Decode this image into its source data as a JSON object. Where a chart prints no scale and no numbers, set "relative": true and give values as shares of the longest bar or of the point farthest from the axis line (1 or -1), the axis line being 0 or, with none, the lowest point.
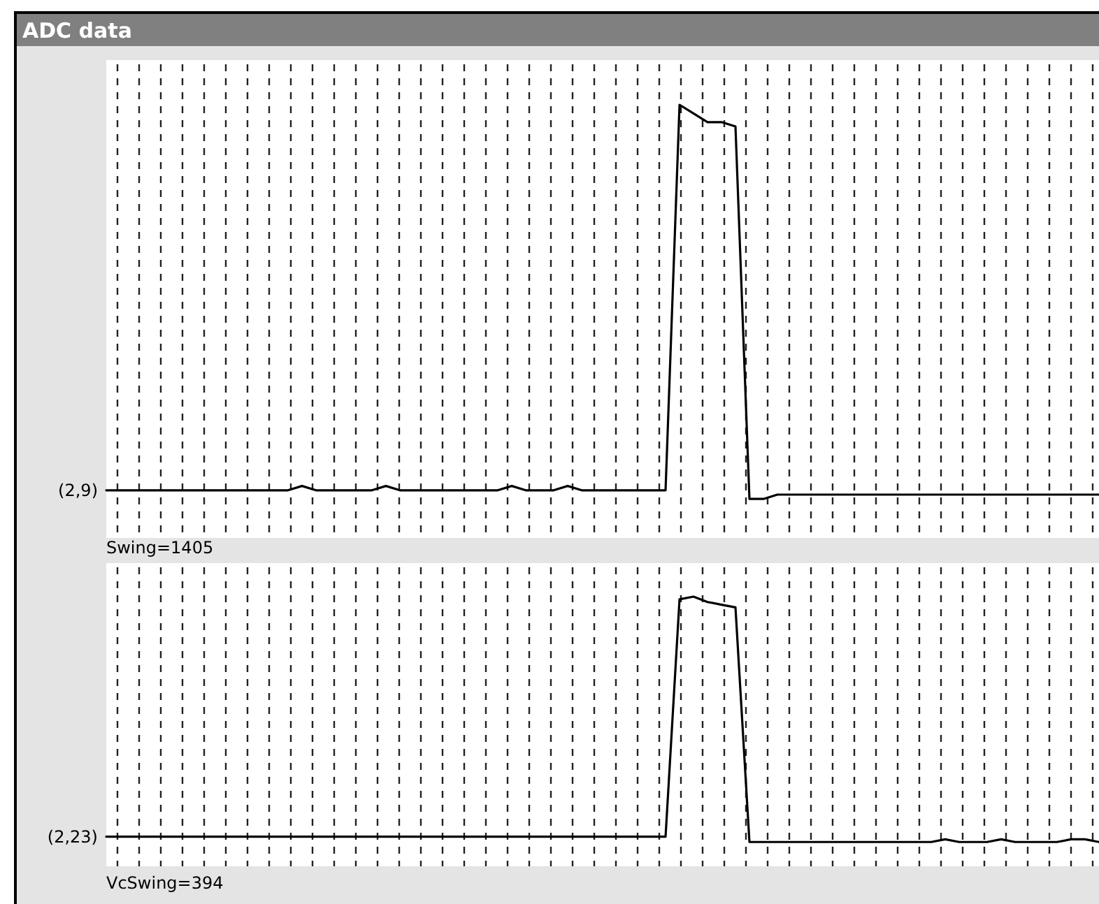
{
  "chart_data": [
    {
      "type": "line",
      "title": "ADC data",
      "relative": true,
      "tick_labels": false,
      "grid": "x",
      "marker": "none",
      "line_style": "solid",
      "annotations": [
        "(2,9)",
        "Swing=1405"
      ],
      "categories": [
        null,
        null,
        null,
        null,
        null,
        null,
        null,
        null,
        null,
        null,
        null,
        null,
        null,
        null,
        null,
        null,
        null,
        null,
        null,
        null,
        null,
        null,
        null,
        null,
        null,
        null,
        null,
        null,
        null,
        null,
        null,
        null,
        null,
        null,
        null,
        null,
        null,
        null,
        null,
        null,
        null,
        null,
        null,
        null,
        null,
        null,
        null,
        null,
        null,
        null,
        null,
        null,
        null,
        null,
        null,
        null,
        null,
        null,
        null,
        null,
        null,
        null,
        null,
        null,
        null,
        null,
        null,
        null,
        null,
        null,
        null,
        null
      ],
      "series": [
        {
          "color": "#000000",
          "values": [
            0.11,
            0.11,
            0.11,
            0.11,
            0.11,
            0.11,
            0.11,
            0.11,
            0.11,
            0.11,
            0.11,
            0.11,
            0.11,
            0.11,
            0.12,
            0.11,
            0.11,
            0.11,
            0.11,
            0.11,
            0.12,
            0.11,
            0.11,
            0.11,
            0.11,
            0.11,
            0.11,
            0.11,
            0.11,
            0.12,
            0.11,
            0.11,
            0.11,
            0.12,
            0.11,
            0.11,
            0.11,
            0.11,
            0.11,
            0.11,
            0.11,
            1.0,
            0.98,
            0.96,
            0.96,
            0.95,
            0.09,
            0.09,
            0.1,
            0.1,
            0.1,
            0.1,
            0.1,
            0.1,
            0.1,
            0.1,
            0.1,
            0.1,
            0.1,
            0.1,
            0.1,
            0.1,
            0.1,
            0.1,
            0.1,
            0.1,
            0.1,
            0.1,
            0.1,
            0.1,
            0.1,
            0.1
          ]
        }
      ]
    },
    {
      "type": "line",
      "relative": true,
      "tick_labels": false,
      "grid": "x",
      "marker": "none",
      "line_style": "solid",
      "annotations": [
        "(2,23)",
        "VcSwing=394"
      ],
      "categories": [
        null,
        null,
        null,
        null,
        null,
        null,
        null,
        null,
        null,
        null,
        null,
        null,
        null,
        null,
        null,
        null,
        null,
        null,
        null,
        null,
        null,
        null,
        null,
        null,
        null,
        null,
        null,
        null,
        null,
        null,
        null,
        null,
        null,
        null,
        null,
        null,
        null,
        null,
        null,
        null,
        null,
        null,
        null,
        null,
        null,
        null,
        null,
        null,
        null,
        null,
        null,
        null,
        null,
        null,
        null,
        null,
        null,
        null,
        null,
        null,
        null,
        null,
        null,
        null,
        null,
        null,
        null,
        null,
        null,
        null,
        null,
        null
      ],
      "series": [
        {
          "color": "#000000",
          "values": [
            0.11,
            0.11,
            0.11,
            0.11,
            0.11,
            0.11,
            0.11,
            0.11,
            0.11,
            0.11,
            0.11,
            0.11,
            0.11,
            0.11,
            0.11,
            0.11,
            0.11,
            0.11,
            0.11,
            0.11,
            0.11,
            0.11,
            0.11,
            0.11,
            0.11,
            0.11,
            0.11,
            0.11,
            0.11,
            0.11,
            0.11,
            0.11,
            0.11,
            0.11,
            0.11,
            0.11,
            0.11,
            0.11,
            0.11,
            0.11,
            0.11,
            0.99,
            1.0,
            0.98,
            0.97,
            0.96,
            0.09,
            0.09,
            0.09,
            0.09,
            0.09,
            0.09,
            0.09,
            0.09,
            0.09,
            0.09,
            0.09,
            0.09,
            0.09,
            0.09,
            0.1,
            0.09,
            0.09,
            0.09,
            0.1,
            0.09,
            0.09,
            0.09,
            0.09,
            0.1,
            0.1,
            0.09
          ]
        }
      ]
    }
  ]
}
